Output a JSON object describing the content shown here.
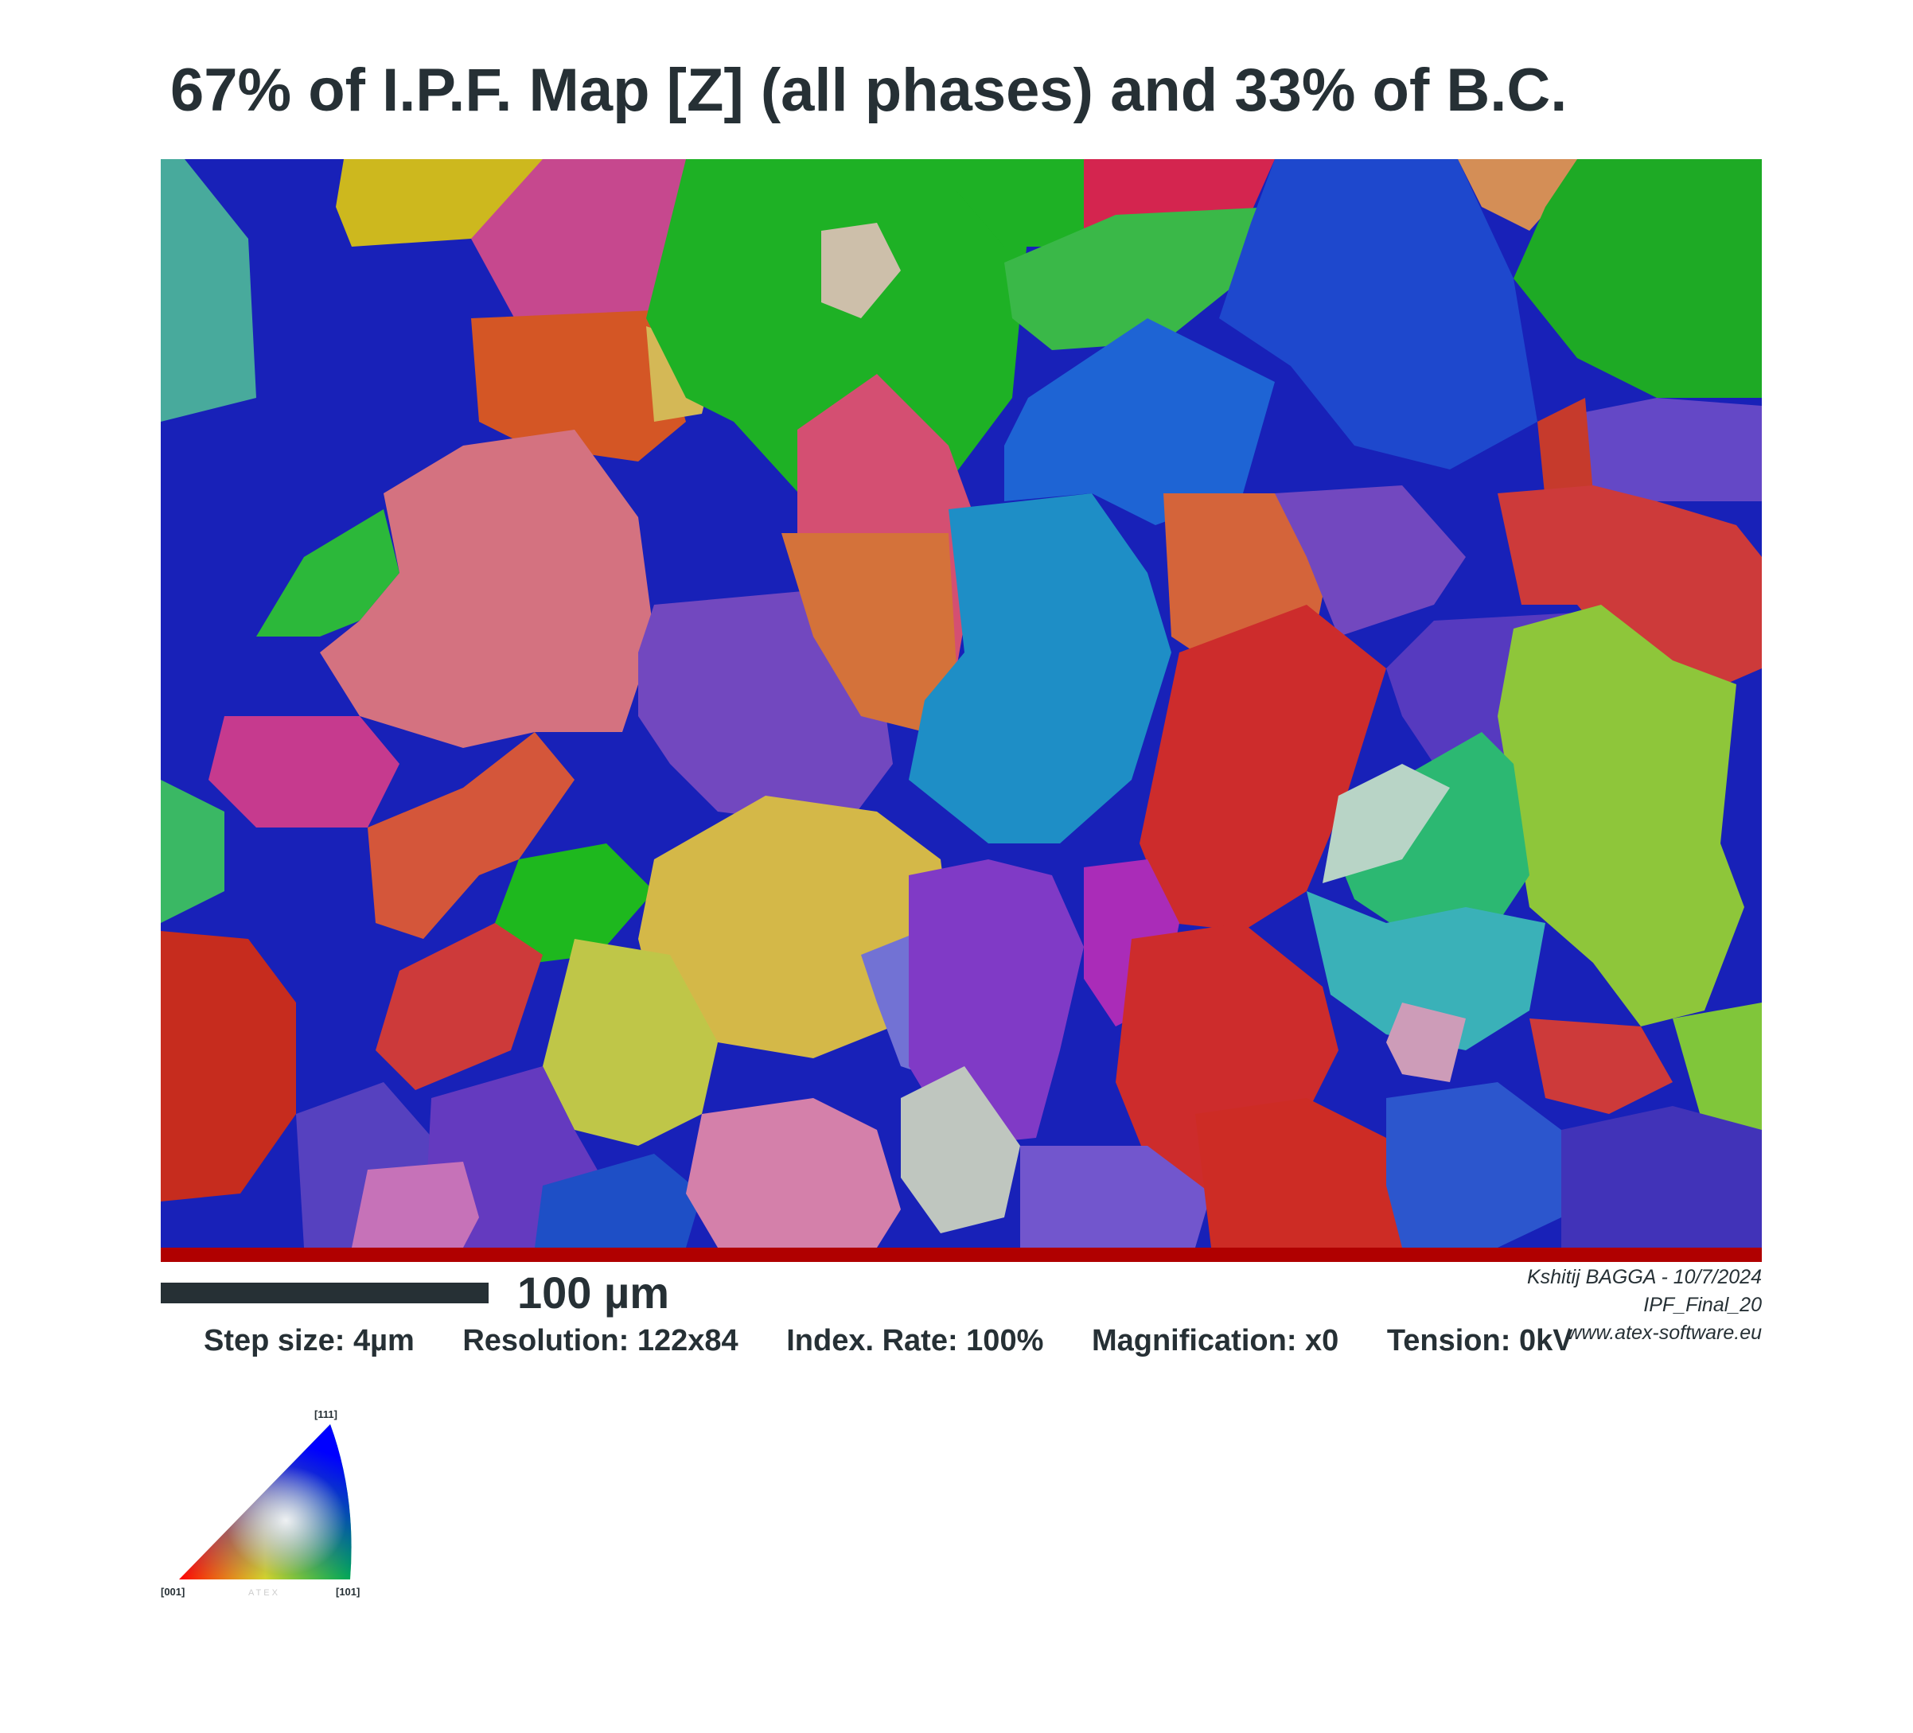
{
  "title": "67% of I.P.F. Map [Z] (all phases) and 33% of B.C.",
  "scale_label": "100 µm",
  "credits": {
    "author": "Kshitij BAGGA - 10/7/2024",
    "file": "IPF_Final_20",
    "website": "www.atex-software.eu"
  },
  "params": {
    "step_size": "Step size: 4µm",
    "resolution": "Resolution: 122x84",
    "index_rate": "Index. Rate: 100%",
    "magnification": "Magnification: x0",
    "tension": "Tension: 0kV"
  },
  "legend": {
    "top": "[111]",
    "left": "[001]",
    "right": "[101]",
    "watermark": "ATEX",
    "colors": {
      "001": "#ff0000",
      "101": "#00ff00",
      "111": "#0000ff"
    }
  },
  "grain_colors": [
    "#0a14c0",
    "#08b018",
    "#d02020",
    "#d04090",
    "#7030c8",
    "#e07030",
    "#1090d0",
    "#c8d020",
    "#90d030",
    "#e0a0a0",
    "#30c070",
    "#1048d8",
    "#e0c040"
  ]
}
